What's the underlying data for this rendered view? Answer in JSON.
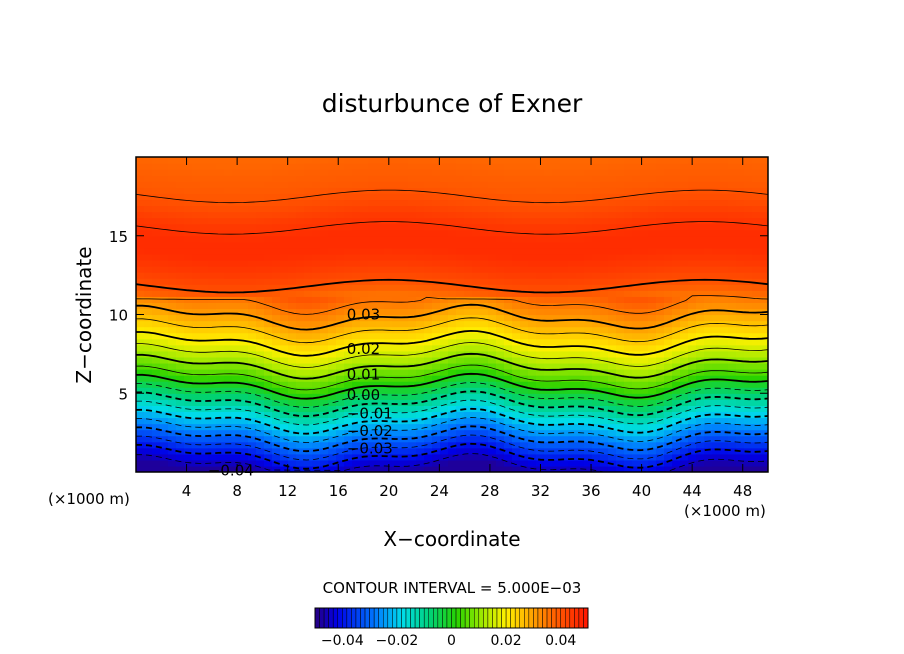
{
  "chart_data": {
    "type": "contour",
    "title": "disturbunce of Exner",
    "xlabel": "X−coordinate",
    "ylabel": "Z−coordinate",
    "x_unit_left": "(×1000 m)",
    "x_unit_right": "(×1000 m)",
    "xlim": [
      0,
      50
    ],
    "ylim": [
      0,
      20
    ],
    "x_ticks": [
      "4",
      "8",
      "12",
      "16",
      "20",
      "24",
      "28",
      "32",
      "36",
      "40",
      "44",
      "48"
    ],
    "y_ticks": [
      "5",
      "10",
      "15"
    ],
    "x_tick_values": [
      4,
      8,
      12,
      16,
      20,
      24,
      28,
      32,
      36,
      40,
      44,
      48
    ],
    "y_tick_values": [
      5,
      10,
      15
    ],
    "contour_interval_text": "CONTOUR INTERVAL = 5.000E−03",
    "contour_interval": 0.005,
    "contour_labels": [
      {
        "text": "0.03",
        "x": 18.0,
        "z": 10.0
      },
      {
        "text": "0.02",
        "x": 18.0,
        "z": 7.8
      },
      {
        "text": "0.01",
        "x": 18.0,
        "z": 6.2
      },
      {
        "text": "0.00",
        "x": 18.0,
        "z": 4.9
      },
      {
        "text": "−0.01",
        "x": 18.5,
        "z": 3.7
      },
      {
        "text": "−0.02",
        "x": 18.5,
        "z": 2.6
      },
      {
        "text": "−0.03",
        "x": 18.5,
        "z": 1.5
      },
      {
        "text": "−0.04",
        "x": 7.5,
        "z": 0.1
      }
    ],
    "field_profile": {
      "z": [
        0,
        1,
        2,
        3,
        4,
        5,
        6,
        7,
        8,
        9,
        10,
        11,
        12,
        13,
        14,
        15,
        16,
        17,
        18,
        19,
        20
      ],
      "value": [
        -0.048,
        -0.04,
        -0.031,
        -0.022,
        -0.013,
        -0.004,
        0.005,
        0.012,
        0.019,
        0.025,
        0.031,
        0.036,
        0.041,
        0.044,
        0.046,
        0.046,
        0.044,
        0.041,
        0.039,
        0.038,
        0.037
      ]
    },
    "contour_levels_min": -0.045,
    "contour_levels_max": 0.045,
    "colorbar": {
      "range": [
        -0.05,
        0.05
      ],
      "tick_labels": [
        "−0.04",
        "−0.02",
        "0",
        "0.02",
        "0.04"
      ],
      "tick_values": [
        -0.04,
        -0.02,
        0,
        0.02,
        0.04
      ]
    }
  }
}
